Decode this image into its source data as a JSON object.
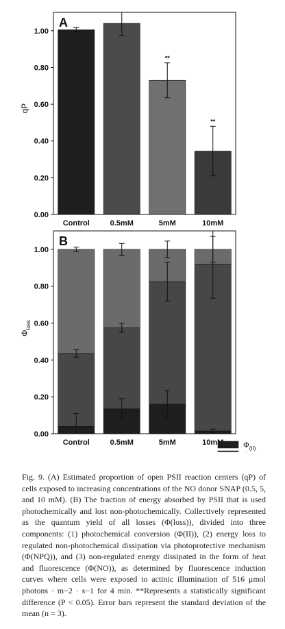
{
  "chart_data": [
    {
      "type": "bar",
      "panel_label": "A",
      "ylabel": "qP",
      "categories": [
        "Control",
        "0.5mM",
        "5mM",
        "10mM"
      ],
      "ylim": [
        0,
        1.1
      ],
      "yticks": [
        "0.00",
        "0.20",
        "0.40",
        "0.60",
        "0.80",
        "1.00"
      ],
      "series": [
        {
          "values": [
            1.005,
            1.04,
            0.73,
            0.345
          ],
          "errors": [
            0.012,
            0.065,
            0.095,
            0.135
          ],
          "significance": [
            "",
            "",
            "**",
            "**"
          ],
          "colors": [
            "#1e1e1e",
            "#4a4a4a",
            "#707070",
            "#3a3a3a"
          ]
        }
      ],
      "grid": false
    },
    {
      "type": "bar",
      "stacked": true,
      "panel_label": "B",
      "ylabel": "Φloss",
      "ylabel_main": "Φ",
      "ylabel_sub": "loss",
      "categories": [
        "Control",
        "0.5mM",
        "5mM",
        "10mM"
      ],
      "ylim": [
        0,
        1.1
      ],
      "yticks": [
        "0.00",
        "0.20",
        "0.40",
        "0.60",
        "0.80",
        "1.00"
      ],
      "series": [
        {
          "name": "Φ(II)",
          "name_main": "Φ",
          "name_sub": "(II)",
          "color": "#1e1e1e",
          "values": [
            0.04,
            0.135,
            0.16,
            0.015
          ],
          "errors": [
            0.07,
            0.055,
            0.075,
            0.01
          ]
        },
        {
          "name": "ΦNO",
          "name_main": "Φ",
          "name_sub": "NO",
          "color": "#474747",
          "values": [
            0.395,
            0.44,
            0.665,
            0.905
          ],
          "errors": [
            0.02,
            0.025,
            0.105,
            0.185
          ]
        },
        {
          "name": "ΦNPQ",
          "name_main": "Φ",
          "name_sub": "NPQ",
          "color": "#6b6b6b",
          "values": [
            0.565,
            0.425,
            0.175,
            0.08
          ],
          "errors": [
            0.012,
            0.032,
            0.045,
            0.07
          ]
        }
      ],
      "legend_position": "bottom-right",
      "grid": false
    }
  ],
  "caption": "Fig. 9. (A) Estimated proportion of open PSII reaction centers (qP) of cells exposed to increasing concentrations of the NO donor SNAP (0.5, 5, and 10 mM). (B) The fraction of energy absorbed by PSII that is used photochemically and lost non-photochemically. Collectively represented as the quantum yield of all losses (Φ(loss)), divided into three components: (1) photochemical conversion (Φ(II)), (2) energy loss to regulated non-photochemical dissipation via photoprotective mechanism (Φ(NPQ)), and (3) non-regulated energy dissipated in the form of heat and fluorescence (Φ(NO)), as determined by fluorescence induction curves where cells were exposed to actinic illumination of 516 μmol photons · m−2 · s−1 for 4 min. **Represents a statistically significant difference (P < 0.05). Error bars represent the standard deviation of the mean (n = 3)."
}
